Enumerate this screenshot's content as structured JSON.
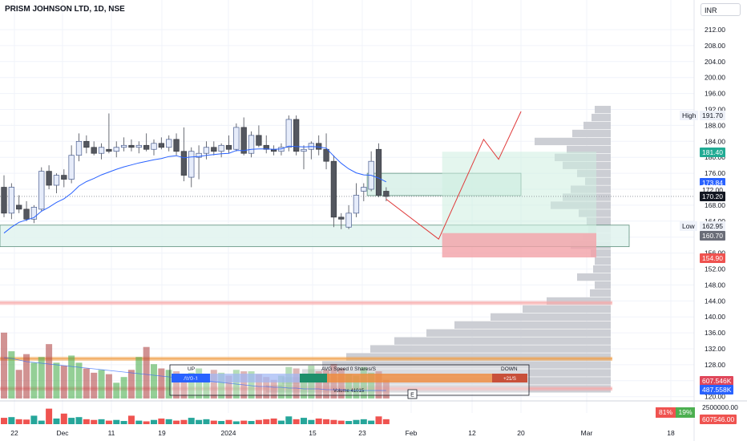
{
  "header": {
    "symbol": "PRISM JOHNSON LTD, 1D, NSE",
    "currency": "INR"
  },
  "chart_data": {
    "type": "candlestick",
    "price_axis": {
      "min": 120.0,
      "max": 214.0,
      "ticks": [
        "212.00",
        "208.00",
        "204.00",
        "200.00",
        "196.00",
        "192.00",
        "188.00",
        "184.00",
        "180.00",
        "176.00",
        "172.00",
        "168.00",
        "164.00",
        "160.00",
        "156.00",
        "152.00",
        "148.00",
        "144.00",
        "140.00",
        "136.00",
        "132.00",
        "128.00",
        "124.00",
        "120.00"
      ]
    },
    "time_axis": {
      "labels": [
        "22",
        "Dec",
        "11",
        "19",
        "2024",
        "15",
        "23",
        "Feb",
        "12",
        "20",
        "Mar",
        "18"
      ]
    },
    "candles": [
      {
        "o": 172.5,
        "h": 175.5,
        "l": 165.0,
        "c": 166.0
      },
      {
        "o": 166.0,
        "h": 173.5,
        "l": 164.5,
        "c": 172.5
      },
      {
        "o": 168.0,
        "h": 170.5,
        "l": 166.0,
        "c": 167.0
      },
      {
        "o": 167.0,
        "h": 169.0,
        "l": 164.0,
        "c": 164.5
      },
      {
        "o": 164.5,
        "h": 168.0,
        "l": 163.5,
        "c": 167.5
      },
      {
        "o": 167.0,
        "h": 177.5,
        "l": 166.5,
        "c": 176.5
      },
      {
        "o": 176.5,
        "h": 178.0,
        "l": 172.0,
        "c": 173.0
      },
      {
        "o": 173.0,
        "h": 176.0,
        "l": 171.0,
        "c": 175.5
      },
      {
        "o": 175.5,
        "h": 177.0,
        "l": 172.5,
        "c": 174.5
      },
      {
        "o": 174.5,
        "h": 183.0,
        "l": 173.5,
        "c": 180.5
      },
      {
        "o": 180.5,
        "h": 186.0,
        "l": 179.0,
        "c": 184.0
      },
      {
        "o": 184.0,
        "h": 185.5,
        "l": 181.0,
        "c": 182.5
      },
      {
        "o": 182.5,
        "h": 184.0,
        "l": 180.5,
        "c": 181.0
      },
      {
        "o": 181.0,
        "h": 183.5,
        "l": 179.5,
        "c": 182.5
      },
      {
        "o": 182.0,
        "h": 191.0,
        "l": 181.0,
        "c": 181.5
      },
      {
        "o": 181.5,
        "h": 184.0,
        "l": 180.0,
        "c": 182.5
      },
      {
        "o": 182.5,
        "h": 185.0,
        "l": 181.5,
        "c": 183.0
      },
      {
        "o": 183.0,
        "h": 184.5,
        "l": 181.5,
        "c": 182.5
      },
      {
        "o": 182.5,
        "h": 184.0,
        "l": 181.0,
        "c": 183.0
      },
      {
        "o": 183.0,
        "h": 186.0,
        "l": 181.5,
        "c": 182.0
      },
      {
        "o": 182.0,
        "h": 184.5,
        "l": 180.5,
        "c": 183.5
      },
      {
        "o": 183.5,
        "h": 185.0,
        "l": 182.0,
        "c": 182.5
      },
      {
        "o": 182.5,
        "h": 185.5,
        "l": 181.5,
        "c": 184.5
      },
      {
        "o": 184.5,
        "h": 186.0,
        "l": 180.5,
        "c": 181.5
      },
      {
        "o": 181.5,
        "h": 187.5,
        "l": 174.0,
        "c": 175.5
      },
      {
        "o": 175.0,
        "h": 182.5,
        "l": 172.5,
        "c": 181.5
      },
      {
        "o": 180.0,
        "h": 183.0,
        "l": 174.5,
        "c": 181.0
      },
      {
        "o": 181.0,
        "h": 184.0,
        "l": 179.5,
        "c": 182.5
      },
      {
        "o": 182.5,
        "h": 184.0,
        "l": 180.5,
        "c": 181.5
      },
      {
        "o": 181.5,
        "h": 183.5,
        "l": 180.0,
        "c": 183.0
      },
      {
        "o": 183.0,
        "h": 185.5,
        "l": 181.0,
        "c": 182.0
      },
      {
        "o": 182.0,
        "h": 188.5,
        "l": 181.5,
        "c": 187.5
      },
      {
        "o": 187.5,
        "h": 190.0,
        "l": 180.5,
        "c": 181.0
      },
      {
        "o": 181.0,
        "h": 186.5,
        "l": 180.0,
        "c": 185.5
      },
      {
        "o": 185.5,
        "h": 188.0,
        "l": 182.5,
        "c": 183.0
      },
      {
        "o": 183.0,
        "h": 185.5,
        "l": 181.0,
        "c": 182.0
      },
      {
        "o": 182.0,
        "h": 183.0,
        "l": 180.5,
        "c": 181.5
      },
      {
        "o": 181.5,
        "h": 183.5,
        "l": 180.5,
        "c": 182.5
      },
      {
        "o": 182.5,
        "h": 190.5,
        "l": 181.5,
        "c": 189.5
      },
      {
        "o": 189.5,
        "h": 190.5,
        "l": 180.5,
        "c": 181.5
      },
      {
        "o": 181.5,
        "h": 183.0,
        "l": 177.0,
        "c": 182.0
      },
      {
        "o": 182.0,
        "h": 184.0,
        "l": 179.5,
        "c": 183.5
      },
      {
        "o": 183.5,
        "h": 185.5,
        "l": 180.5,
        "c": 182.0
      },
      {
        "o": 182.0,
        "h": 186.0,
        "l": 177.0,
        "c": 179.0
      },
      {
        "o": 179.0,
        "h": 180.5,
        "l": 162.5,
        "c": 165.0
      },
      {
        "o": 165.0,
        "h": 166.0,
        "l": 162.0,
        "c": 164.5
      },
      {
        "o": 162.5,
        "h": 168.0,
        "l": 162.0,
        "c": 166.0
      },
      {
        "o": 166.0,
        "h": 173.5,
        "l": 165.0,
        "c": 170.5
      },
      {
        "o": 171.5,
        "h": 173.5,
        "l": 169.0,
        "c": 172.5
      },
      {
        "o": 172.0,
        "h": 181.5,
        "l": 171.5,
        "c": 179.0
      },
      {
        "o": 182.0,
        "h": 183.5,
        "l": 170.0,
        "c": 170.5
      },
      {
        "o": 171.5,
        "h": 172.5,
        "l": 169.0,
        "c": 170.2
      }
    ],
    "ema": [
      161.0,
      162.5,
      163.7,
      164.3,
      164.9,
      166.5,
      167.5,
      168.7,
      169.6,
      171.0,
      172.8,
      173.9,
      174.7,
      175.6,
      176.3,
      177.0,
      177.6,
      178.1,
      178.6,
      179.0,
      179.4,
      179.7,
      180.2,
      180.4,
      179.9,
      180.1,
      180.2,
      180.5,
      180.7,
      180.9,
      181.0,
      181.7,
      181.7,
      182.0,
      182.1,
      182.1,
      182.0,
      182.1,
      182.8,
      182.7,
      182.6,
      182.7,
      182.6,
      182.3,
      180.3,
      178.5,
      177.1,
      176.1,
      175.6,
      175.5,
      174.8,
      173.84
    ],
    "projection": [
      {
        "i": 51,
        "p": 169.5
      },
      {
        "i": 58,
        "p": 159.5
      },
      {
        "i": 64,
        "p": 184.5
      },
      {
        "i": 66,
        "p": 179.5
      },
      {
        "i": 69,
        "p": 191.5
      }
    ],
    "zones": [
      {
        "kind": "demand",
        "from": 0,
        "to": 79,
        "top": 163.0,
        "bottom": 157.6
      },
      {
        "kind": "supply",
        "from": 49,
        "to": 66,
        "top": 176.0,
        "bottom": 170.4
      },
      {
        "kind": "projection-green",
        "from": 59,
        "to": 75,
        "top": 181.4,
        "bottom": 161.0
      },
      {
        "kind": "projection-red",
        "from": 59,
        "to": 75,
        "top": 161.0,
        "bottom": 154.9
      }
    ],
    "levels": [
      {
        "price": 143.5,
        "color": "#f7a9a9"
      },
      {
        "price": 129.5,
        "color": "#f0a04b"
      },
      {
        "price": 122.0,
        "color": "#f7a9a9"
      }
    ],
    "volume_profile": [
      {
        "p": 191.0,
        "w": 20
      },
      {
        "p": 189.0,
        "w": 24
      },
      {
        "p": 187.0,
        "w": 34
      },
      {
        "p": 185.0,
        "w": 48
      },
      {
        "p": 183.0,
        "w": 95
      },
      {
        "p": 181.0,
        "w": 55
      },
      {
        "p": 179.0,
        "w": 70
      },
      {
        "p": 177.0,
        "w": 60
      },
      {
        "p": 175.0,
        "w": 42
      },
      {
        "p": 173.0,
        "w": 32
      },
      {
        "p": 171.0,
        "w": 50
      },
      {
        "p": 169.0,
        "w": 60
      },
      {
        "p": 167.0,
        "w": 75
      },
      {
        "p": 165.0,
        "w": 40
      },
      {
        "p": 163.0,
        "w": 30
      },
      {
        "p": 161.0,
        "w": 28
      },
      {
        "p": 159.0,
        "w": 35
      },
      {
        "p": 157.0,
        "w": 50
      },
      {
        "p": 155.0,
        "w": 25
      },
      {
        "p": 153.0,
        "w": 20
      },
      {
        "p": 151.0,
        "w": 22
      },
      {
        "p": 149.0,
        "w": 42
      },
      {
        "p": 147.0,
        "w": 20
      },
      {
        "p": 145.0,
        "w": 26
      },
      {
        "p": 143.0,
        "w": 80
      },
      {
        "p": 141.0,
        "w": 110
      },
      {
        "p": 139.0,
        "w": 150
      },
      {
        "p": 137.0,
        "w": 195
      },
      {
        "p": 135.0,
        "w": 230
      },
      {
        "p": 133.0,
        "w": 270
      },
      {
        "p": 131.0,
        "w": 300
      },
      {
        "p": 129.0,
        "w": 330
      },
      {
        "p": 127.0,
        "w": 360
      },
      {
        "p": 125.0,
        "w": 385
      },
      {
        "p": 123.0,
        "w": 410
      },
      {
        "p": 121.0,
        "w": 430
      }
    ],
    "volume_scale_max": 700000,
    "volumes": [
      460000,
      330000,
      200000,
      310000,
      250000,
      290000,
      380000,
      250000,
      230000,
      300000,
      250000,
      210000,
      180000,
      200000,
      170000,
      110000,
      150000,
      200000,
      290000,
      360000,
      240000,
      210000,
      200000,
      190000,
      170000,
      180000,
      210000,
      170000,
      200000,
      180000,
      160000,
      200000,
      190000,
      190000,
      170000,
      150000,
      130000,
      160000,
      220000,
      210000,
      170000,
      230000,
      190000,
      200000,
      240000,
      210000,
      170000,
      160000,
      220000,
      180000,
      190000,
      130000
    ],
    "lower_volumes": [
      900000,
      1000000,
      700000,
      650000,
      1200000,
      500000,
      2200000,
      800000,
      1500000,
      900000,
      1000000,
      700000,
      600000,
      700000,
      500000,
      600000,
      450000,
      1200000,
      500000,
      400000,
      600000,
      800000,
      700000,
      500000,
      600000,
      900000,
      600000,
      700000,
      500000,
      450000,
      600000,
      400000,
      500000,
      450000,
      600000,
      700000,
      800000,
      500000,
      1100000,
      700000,
      900000,
      600000,
      800000,
      700000,
      600000,
      500000,
      450000,
      600000,
      700000,
      500000,
      1100000,
      700000
    ],
    "price_tags": {
      "high_label": "High",
      "high": "191.70",
      "ema_last": "181.40",
      "level_a": "173.84",
      "level_b": "172.00",
      "last": "170.20",
      "low_label": "Low",
      "low": "162.95",
      "low_b": "160.70",
      "red_level": "154.90",
      "hidden": "164.00",
      "hidden2": "156.00"
    },
    "volume_tags": {
      "sell": "607.546K",
      "buy": "487.558K",
      "vol_axis": "2500000.00",
      "lower_last": "607546.00"
    },
    "panel": {
      "up": "UP",
      "down": "DOWN",
      "avg_speed": "AVG Speed 0 Shares/S",
      "vol_row": "Volume 41015",
      "speed_left": "AVG-1",
      "speed_right": "+21/S"
    },
    "buy_sell": {
      "sell_pct": "81%",
      "buy_pct": "19%"
    },
    "markers": {
      "earnings": "E"
    }
  }
}
